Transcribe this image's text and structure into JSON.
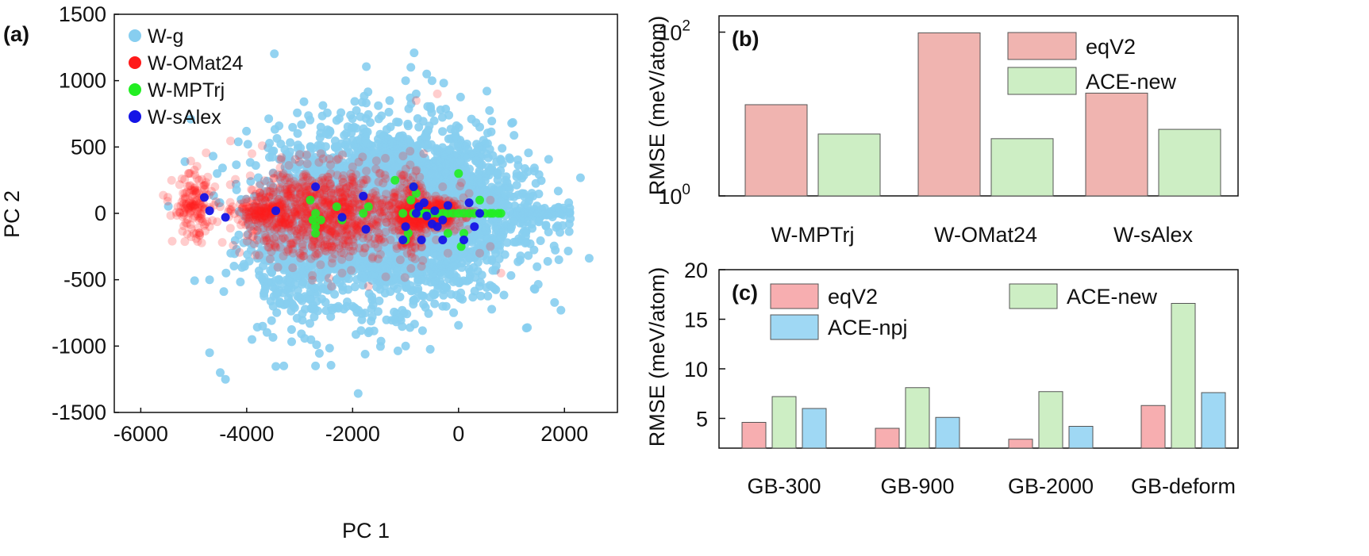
{
  "chart_data": [
    {
      "panel": "(a)",
      "type": "scatter",
      "xlabel": "PC 1",
      "ylabel": "PC 2",
      "xlim": [
        -6500,
        3000
      ],
      "ylim": [
        -1500,
        1500
      ],
      "xticks": [
        -6000,
        -4000,
        -2000,
        0,
        2000
      ],
      "xtick_labels": [
        "-6000",
        "-4000",
        "-2000",
        "0",
        "2000"
      ],
      "yticks": [
        -1500,
        -1000,
        -500,
        0,
        500,
        1000,
        1500
      ],
      "ytick_labels": [
        "-1500",
        "-1000",
        "-500",
        "0",
        "500",
        "1000",
        "1500"
      ],
      "legend_position": "top-left",
      "series": [
        {
          "name": "W-g",
          "color": "#87cef0",
          "opacity": 0.9,
          "points": [
            [
              2100,
              0
            ],
            [
              2080,
              80
            ],
            [
              2090,
              -80
            ],
            [
              2100,
              40
            ],
            [
              2110,
              -40
            ],
            [
              -900,
              1100
            ],
            [
              -1000,
              1000
            ],
            [
              -600,
              1050
            ],
            [
              -500,
              1000
            ],
            [
              -800,
              900
            ],
            [
              -2300,
              700
            ],
            [
              -2600,
              650
            ],
            [
              -3200,
              350
            ],
            [
              -4100,
              100
            ],
            [
              -4700,
              -500
            ],
            [
              -4700,
              -1050
            ],
            [
              -3700,
              -850
            ],
            [
              -4500,
              -1200
            ],
            [
              -4400,
              -1250
            ],
            [
              -3300,
              -1150
            ],
            [
              -2700,
              -1150
            ],
            [
              -1700,
              -900
            ],
            [
              -1000,
              -1000
            ],
            [
              -3900,
              -950
            ],
            [
              -3500,
              -700
            ],
            [
              -4300,
              -300
            ],
            [
              -2000,
              550
            ],
            [
              -2500,
              600
            ],
            [
              -1300,
              850
            ],
            [
              -3000,
              300
            ],
            [
              -3400,
              -300
            ],
            [
              -4200,
              220
            ],
            [
              -3800,
              -100
            ],
            [
              0,
              500
            ],
            [
              400,
              650
            ],
            [
              800,
              400
            ],
            [
              1100,
              300
            ],
            [
              1200,
              150
            ],
            [
              1300,
              60
            ],
            [
              1000,
              -100
            ],
            [
              700,
              -300
            ],
            [
              200,
              -500
            ],
            [
              -300,
              -700
            ],
            [
              -1200,
              -800
            ],
            [
              -2000,
              -700
            ],
            [
              -2300,
              -500
            ],
            [
              -2800,
              -650
            ],
            [
              -1600,
              400
            ],
            [
              -1400,
              -400
            ],
            [
              -700,
              -500
            ],
            [
              -100,
              -400
            ],
            [
              -500,
              300
            ],
            [
              -200,
              200
            ],
            [
              1500,
              0
            ],
            [
              1700,
              0
            ],
            [
              1900,
              0
            ]
          ],
          "clouds": [
            {
              "cx": -1250,
              "cy": 0,
              "rx": 2500,
              "ry": 750,
              "n": 2600
            },
            {
              "cx": -800,
              "cy": 50,
              "rx": 2000,
              "ry": 430,
              "n": 1200
            },
            {
              "cx": -2700,
              "cy": -50,
              "rx": 1300,
              "ry": 450,
              "n": 700
            },
            {
              "cx": -3200,
              "cy": -400,
              "rx": 700,
              "ry": 600,
              "n": 160
            },
            {
              "cx": 1500,
              "cy": 0,
              "rx": 650,
              "ry": 50,
              "n": 50
            }
          ]
        },
        {
          "name": "W-OMat24",
          "color": "#ff1a1a",
          "opacity": 0.22,
          "points": [
            [
              -5100,
              300
            ],
            [
              -5300,
              50
            ],
            [
              -5000,
              -150
            ],
            [
              -4900,
              250
            ],
            [
              -4600,
              200
            ],
            [
              -4700,
              -100
            ],
            [
              -4900,
              -50
            ],
            [
              -4500,
              50
            ],
            [
              -3900,
              450
            ],
            [
              -2600,
              450
            ],
            [
              -3500,
              300
            ],
            [
              -2200,
              -450
            ],
            [
              -1700,
              -550
            ],
            [
              -2400,
              -550
            ],
            [
              -1100,
              -350
            ],
            [
              -700,
              -400
            ],
            [
              -200,
              -300
            ],
            [
              400,
              -300
            ],
            [
              800,
              -450
            ],
            [
              600,
              -250
            ],
            [
              -800,
              850
            ],
            [
              -400,
              900
            ],
            [
              -3000,
              -300
            ],
            [
              -3300,
              100
            ],
            [
              -4000,
              50
            ],
            [
              -3800,
              -200
            ],
            [
              -2800,
              250
            ],
            [
              -2000,
              350
            ],
            [
              -1500,
              -150
            ],
            [
              -1200,
              150
            ],
            [
              -300,
              200
            ],
            [
              200,
              150
            ],
            [
              600,
              100
            ],
            [
              -3600,
              -100
            ],
            [
              -2500,
              -200
            ],
            [
              -1800,
              250
            ]
          ],
          "clouds": [
            {
              "cx": -5000,
              "cy": 40,
              "rx": 430,
              "ry": 280,
              "n": 140
            },
            {
              "cx": -2500,
              "cy": 0,
              "rx": 1700,
              "ry": 380,
              "n": 850
            },
            {
              "cx": -3700,
              "cy": 0,
              "rx": 600,
              "ry": 120,
              "n": 140
            },
            {
              "cx": -550,
              "cy": 0,
              "rx": 700,
              "ry": 120,
              "n": 400
            },
            {
              "cx": -900,
              "cy": 0,
              "rx": 280,
              "ry": 420,
              "n": 160
            }
          ]
        },
        {
          "name": "W-MPTrj",
          "color": "#22ee22",
          "opacity": 0.9,
          "points": [
            [
              -2800,
              100
            ],
            [
              -2750,
              -50
            ],
            [
              -2700,
              -100
            ],
            [
              -2700,
              0
            ],
            [
              -2600,
              -50
            ],
            [
              -2700,
              -150
            ],
            [
              -2300,
              50
            ],
            [
              -2200,
              -50
            ],
            [
              -1800,
              0
            ],
            [
              -1700,
              50
            ],
            [
              -1050,
              0
            ],
            [
              -1000,
              -200
            ],
            [
              -950,
              -150
            ],
            [
              -900,
              100
            ],
            [
              -850,
              0
            ],
            [
              -850,
              200
            ],
            [
              -800,
              150
            ],
            [
              -750,
              0
            ],
            [
              -700,
              0
            ],
            [
              -650,
              0
            ],
            [
              -600,
              0
            ],
            [
              -500,
              0
            ],
            [
              -400,
              0
            ],
            [
              -300,
              0
            ],
            [
              -200,
              0
            ],
            [
              -100,
              0
            ],
            [
              0,
              0
            ],
            [
              100,
              0
            ],
            [
              200,
              0
            ],
            [
              300,
              0
            ],
            [
              400,
              0
            ],
            [
              500,
              0
            ],
            [
              600,
              0
            ],
            [
              650,
              0
            ],
            [
              750,
              0
            ],
            [
              800,
              0
            ],
            [
              0,
              300
            ],
            [
              400,
              100
            ],
            [
              100,
              -150
            ],
            [
              50,
              -250
            ],
            [
              -1200,
              250
            ],
            [
              -200,
              -150
            ]
          ]
        },
        {
          "name": "W-sAlex",
          "color": "#1414e6",
          "opacity": 0.95,
          "points": [
            [
              -4800,
              120
            ],
            [
              -4700,
              20
            ],
            [
              -4400,
              -30
            ],
            [
              -3450,
              20
            ],
            [
              -2700,
              200
            ],
            [
              -2200,
              -30
            ],
            [
              -1750,
              -120
            ],
            [
              -1800,
              130
            ],
            [
              -1000,
              -100
            ],
            [
              -850,
              200
            ],
            [
              -750,
              50
            ],
            [
              -650,
              80
            ],
            [
              -600,
              -20
            ],
            [
              -500,
              -80
            ],
            [
              -450,
              20
            ],
            [
              -300,
              -50
            ],
            [
              -200,
              60
            ],
            [
              200,
              80
            ],
            [
              300,
              -100
            ],
            [
              400,
              0
            ],
            [
              -700,
              -200
            ],
            [
              -300,
              -200
            ],
            [
              100,
              -200
            ],
            [
              -1050,
              -200
            ],
            [
              -800,
              0
            ],
            [
              -400,
              -100
            ]
          ]
        }
      ]
    },
    {
      "panel": "(b)",
      "type": "bar",
      "yscale": "log",
      "ylim": [
        1,
        158
      ],
      "ylabel": "RMSE (meV/atom)",
      "ytick_labels": [
        {
          "base": "10",
          "exp": "0"
        },
        {
          "base": "10",
          "exp": "2"
        }
      ],
      "categories": [
        "W-MPTrj",
        "W-OMat24",
        "W-sAlex"
      ],
      "legend_position": "top-right",
      "series": [
        {
          "name": "eqV2",
          "color": "#f0b4b0",
          "values": [
            13,
            98,
            18
          ]
        },
        {
          "name": "ACE-new",
          "color": "#cdeec4",
          "values": [
            5.7,
            5.0,
            6.5
          ]
        }
      ]
    },
    {
      "panel": "(c)",
      "type": "bar",
      "ylim": [
        2,
        20
      ],
      "ylabel": "RMSE (meV/atom)",
      "yticks": [
        5,
        10,
        15,
        20
      ],
      "ytick_labels": [
        "5",
        "10",
        "15",
        "20"
      ],
      "categories": [
        "GB-300",
        "GB-900",
        "GB-2000",
        "GB-deform"
      ],
      "legend_position": "top-left",
      "series": [
        {
          "name": "eqV2",
          "color": "#f7aeb0",
          "values": [
            4.6,
            4.0,
            2.9,
            6.3
          ]
        },
        {
          "name": "ACE-new",
          "color": "#cdeec4",
          "values": [
            7.2,
            8.1,
            7.7,
            16.6
          ]
        },
        {
          "name": "ACE-npj",
          "color": "#9fd8f4",
          "values": [
            6.0,
            5.1,
            4.2,
            7.6
          ]
        }
      ]
    }
  ]
}
